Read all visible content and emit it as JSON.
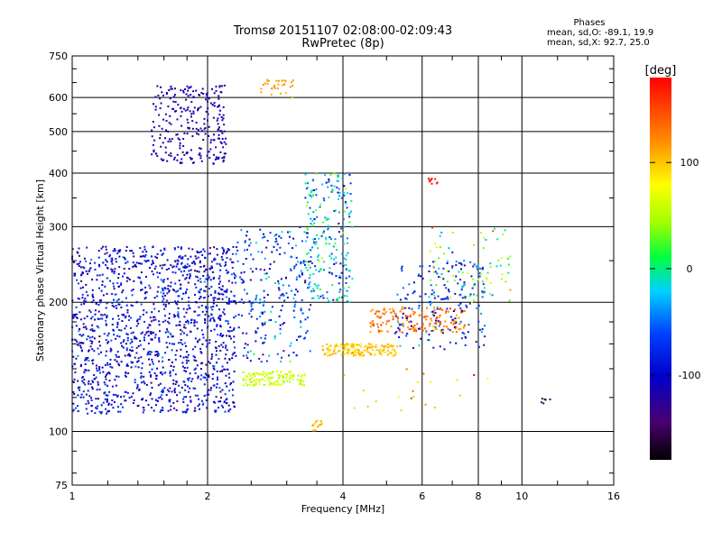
{
  "header": {
    "title_line1": "Tromsø 20151107 02:08:00-02:09:43",
    "title_line2": "RwPretec (8p)"
  },
  "phase_info": {
    "heading": "Phases",
    "line_o": "mean, sd,O: -89.1, 19.9",
    "line_x": "mean, sd,X:  92.7, 25.0"
  },
  "colorbar": {
    "unit": "[deg]",
    "ticks": [
      "100",
      "0",
      "-100"
    ],
    "range": [
      -180,
      180
    ]
  },
  "chart_data": {
    "type": "scatter",
    "xlabel": "Frequency [MHz]",
    "ylabel": "Stationary phase Virtual Height [km]",
    "x_scale": "log",
    "y_scale": "log",
    "xlim": [
      1,
      16
    ],
    "ylim": [
      75,
      750
    ],
    "x_ticks": [
      "1",
      "2",
      "4",
      "6",
      "8",
      "10",
      "16"
    ],
    "y_ticks": [
      "75",
      "100",
      "200",
      "300",
      "400",
      "500",
      "600",
      "750"
    ],
    "grid": true,
    "clusters": [
      {
        "f_min": 1.0,
        "f_max": 2.3,
        "h_min": 110,
        "h_max": 270,
        "phase_mean": -95,
        "phase_sd": 40,
        "density": 1400
      },
      {
        "f_min": 1.5,
        "f_max": 2.2,
        "h_min": 420,
        "h_max": 640,
        "phase_mean": -115,
        "phase_sd": 12,
        "density": 260
      },
      {
        "f_min": 2.3,
        "f_max": 3.4,
        "h_min": 145,
        "h_max": 300,
        "phase_mean": -70,
        "phase_sd": 60,
        "density": 260
      },
      {
        "f_min": 3.3,
        "f_max": 4.2,
        "h_min": 200,
        "h_max": 400,
        "phase_mean": -30,
        "phase_sd": 70,
        "density": 230
      },
      {
        "f_min": 2.4,
        "f_max": 3.3,
        "h_min": 128,
        "h_max": 138,
        "phase_mean": 60,
        "phase_sd": 20,
        "density": 120
      },
      {
        "f_min": 3.6,
        "f_max": 5.3,
        "h_min": 150,
        "h_max": 160,
        "phase_mean": 100,
        "phase_sd": 15,
        "density": 160
      },
      {
        "f_min": 4.6,
        "f_max": 7.5,
        "h_min": 170,
        "h_max": 195,
        "phase_mean": 130,
        "phase_sd": 25,
        "density": 170
      },
      {
        "f_min": 5.2,
        "f_max": 8.3,
        "h_min": 155,
        "h_max": 250,
        "phase_mean": -80,
        "phase_sd": 50,
        "density": 180
      },
      {
        "f_min": 6.2,
        "f_max": 9.5,
        "h_min": 200,
        "h_max": 300,
        "phase_mean": 30,
        "phase_sd": 90,
        "density": 80
      },
      {
        "f_min": 2.6,
        "f_max": 3.1,
        "h_min": 600,
        "h_max": 660,
        "phase_mean": 115,
        "phase_sd": 10,
        "density": 30
      },
      {
        "f_min": 3.4,
        "f_max": 3.6,
        "h_min": 100,
        "h_max": 106,
        "phase_mean": 110,
        "phase_sd": 10,
        "density": 15
      },
      {
        "f_min": 6.2,
        "f_max": 6.5,
        "h_min": 375,
        "h_max": 392,
        "phase_mean": 170,
        "phase_sd": 6,
        "density": 10
      },
      {
        "f_min": 11.0,
        "f_max": 11.6,
        "h_min": 116,
        "h_max": 120,
        "phase_mean": -150,
        "phase_sd": 10,
        "density": 6
      },
      {
        "f_min": 4.0,
        "f_max": 8.5,
        "h_min": 110,
        "h_max": 140,
        "phase_mean": 100,
        "phase_sd": 60,
        "density": 20
      }
    ]
  }
}
